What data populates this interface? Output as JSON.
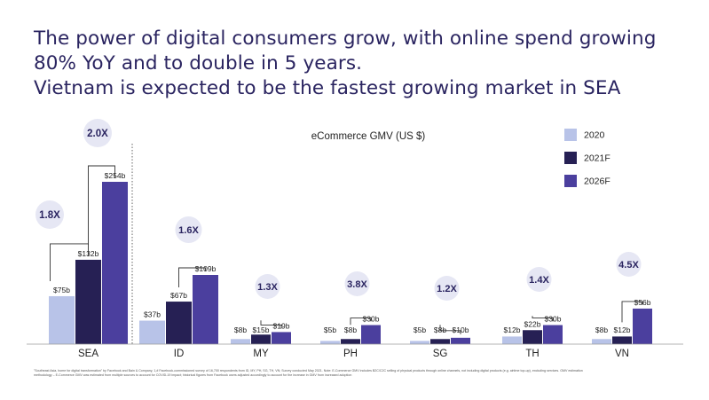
{
  "headline": {
    "line1": "The power of digital consumers grow, with online spend growing",
    "line2": "80% YoY and to double in 5 years.",
    "line3": "Vietnam is expected to be the fastest growing market in SEA"
  },
  "colors": {
    "title": "#2a2460",
    "2020": "#b8c3e8",
    "2021F": "#262054",
    "2026F": "#4b3f9e",
    "bubble": "#e6e7f4",
    "bracket": "#333333"
  },
  "footnote": {
    "line1": "\"Southeast Asia, home for digital transformation\" by Facebook and Bain & Company, 1,# Facebook-commissioned survey of 16,700 respondents from ID, MY, PH, SG, TH, VN; Survey conducted May 2021. Note: E-Commerce GMV includes B2C/C2C selling of physical products through online channels, not including digital products (e.g. airtime top-up), excluding services. GMV estimation",
    "line2": "methodology – E-Commerce GMV was estimated from multiple sources to account for COVID-19 impact; historical figures from Facebook users adjusted accordingly to account for the increase in GMV from increased adoption"
  },
  "chart_data": {
    "type": "bar",
    "title": "eCommerce GMV (US $)",
    "xlabel": "",
    "ylabel": "",
    "categories": [
      "SEA",
      "ID",
      "MY",
      "PH",
      "SG",
      "TH",
      "VN"
    ],
    "series": [
      {
        "name": "2020",
        "values": [
          75,
          37,
          8,
          5,
          5,
          12,
          8
        ]
      },
      {
        "name": "2021F",
        "values": [
          132,
          67,
          15,
          8,
          8,
          22,
          12
        ]
      },
      {
        "name": "2026F",
        "values": [
          254,
          109,
          19,
          30,
          10,
          30,
          56
        ]
      }
    ],
    "data_labels": [
      [
        "$75b",
        "$132b",
        "$254b"
      ],
      [
        "$37b",
        "$67b",
        "$109b"
      ],
      [
        "$8b",
        "$15b",
        "$19b"
      ],
      [
        "$5b",
        "$8b",
        "$30b"
      ],
      [
        "$5b",
        "$8b",
        "$10b"
      ],
      [
        "$12b",
        "$22b",
        "$30b"
      ],
      [
        "$8b",
        "$12b",
        "$56b"
      ]
    ],
    "growth_multipliers": [
      {
        "category": "SEA",
        "label": "1.8X",
        "from": "2020",
        "to": "2021F"
      },
      {
        "category": "SEA",
        "label": "2.0X",
        "from": "2021F",
        "to": "2026F"
      },
      {
        "category": "ID",
        "label": "1.6X",
        "from": "2021F",
        "to": "2026F"
      },
      {
        "category": "MY",
        "label": "1.3X",
        "from": "2021F",
        "to": "2026F"
      },
      {
        "category": "PH",
        "label": "3.8X",
        "from": "2021F",
        "to": "2026F"
      },
      {
        "category": "SG",
        "label": "1.2X",
        "from": "2021F",
        "to": "2026F"
      },
      {
        "category": "TH",
        "label": "1.4X",
        "from": "2021F",
        "to": "2026F"
      },
      {
        "category": "VN",
        "label": "4.5X",
        "from": "2021F",
        "to": "2026F"
      }
    ],
    "scales": {
      "SEA": [
        0,
        254
      ],
      "countries": [
        0,
        109
      ]
    },
    "legend_position": "top-right",
    "grid": false
  }
}
